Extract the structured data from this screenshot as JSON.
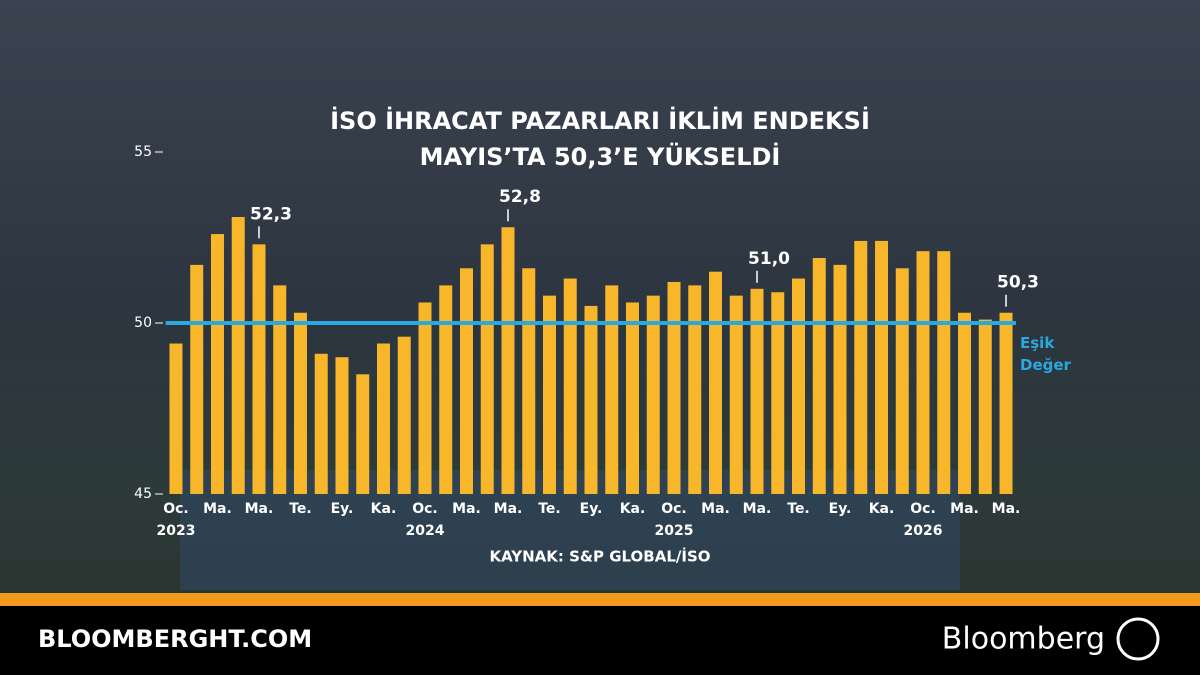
{
  "chart_data": {
    "type": "bar",
    "title": [
      "İSO İHRACAT PAZARLARI İKLİM ENDEKSİ",
      "MAYIS’TA 50,3’E YÜKSELDİ"
    ],
    "source": "KAYNAK: S&P GLOBAL/İSO",
    "categories": [
      "Oc.\n2023",
      null,
      "Ma.",
      null,
      "Ma.",
      null,
      "Te.",
      null,
      "Ey.",
      null,
      "Ka.",
      null,
      "Oc.\n2024",
      null,
      "Ma.",
      null,
      "Ma.",
      null,
      "Te.",
      null,
      "Ey.",
      null,
      "Ka.",
      null,
      "Oc.\n2025",
      null,
      "Ma.",
      null,
      "Ma.",
      null,
      "Te.",
      null,
      "Ey.",
      null,
      "Ka.",
      null,
      "Oc.\n2026",
      null,
      "Ma.",
      null,
      "Ma."
    ],
    "values": [
      49.4,
      51.7,
      52.6,
      53.1,
      52.3,
      51.1,
      50.3,
      49.1,
      49.0,
      48.5,
      49.4,
      49.6,
      50.6,
      51.1,
      51.6,
      52.3,
      52.8,
      51.6,
      50.8,
      51.3,
      50.5,
      51.1,
      50.6,
      50.8,
      51.2,
      51.1,
      51.5,
      50.8,
      51.0,
      50.9,
      51.3,
      51.9,
      51.7,
      52.4,
      52.4,
      51.6,
      52.1,
      52.1,
      50.3,
      50.1,
      50.3
    ],
    "value_labels": [
      null,
      null,
      null,
      null,
      "52,3",
      null,
      null,
      null,
      null,
      null,
      null,
      null,
      null,
      null,
      null,
      null,
      "52,8",
      null,
      null,
      null,
      null,
      null,
      null,
      null,
      null,
      null,
      null,
      null,
      "51,0",
      null,
      null,
      null,
      null,
      null,
      null,
      null,
      null,
      null,
      null,
      null,
      "50,3"
    ],
    "color": "#f8b62a",
    "ylim": [
      45,
      55
    ],
    "yticks": [
      45,
      50,
      55
    ],
    "threshold": {
      "value": 50,
      "label": "Eşik Değer",
      "color": "#2aa8e0"
    }
  },
  "footer": {
    "site": "BLOOMBERGHT.COM",
    "brand": "Bloomberg"
  }
}
